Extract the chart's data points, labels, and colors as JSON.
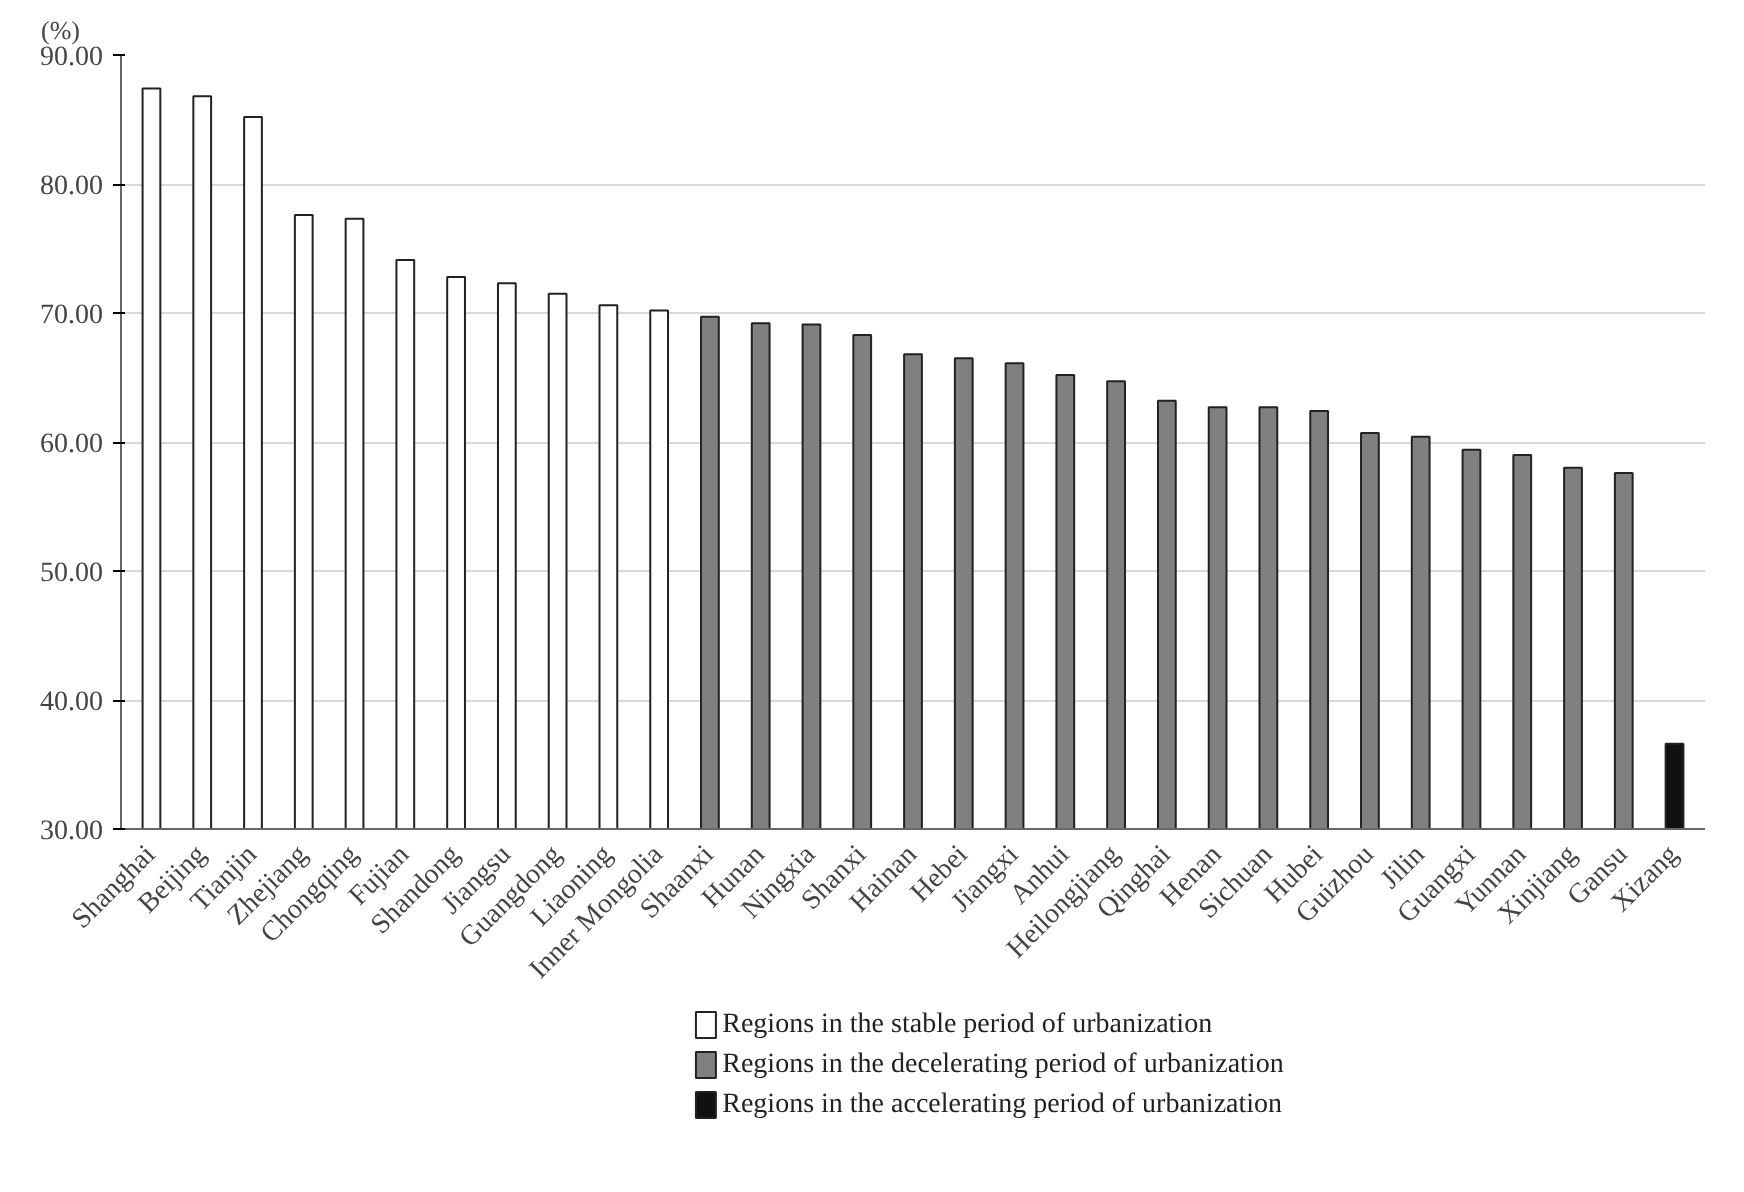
{
  "chart_data": {
    "type": "bar",
    "ylabel": "(%)",
    "categories": [
      "Shanghai",
      "Beijing",
      "Tianjin",
      "Zhejiang",
      "Chongqing",
      "Fujian",
      "Shandong",
      "Jiangsu",
      "Guangdong",
      "Liaoning",
      "Inner Mongolia",
      "Shaanxi",
      "Hunan",
      "Ningxia",
      "Shanxi",
      "Hainan",
      "Hebei",
      "Jiangxi",
      "Anhui",
      "Heilongjiang",
      "Qinghai",
      "Henan",
      "Sichuan",
      "Hubei",
      "Guizhou",
      "Jilin",
      "Guangxi",
      "Yunnan",
      "Xinjiang",
      "Gansu",
      "Xizang"
    ],
    "series": [
      {
        "name": "Regions in the stable period of urbanization",
        "color": "#ffffff",
        "values": [
          87.4,
          86.8,
          85.2,
          77.6,
          77.3,
          74.1,
          72.8,
          72.3,
          71.5,
          70.6,
          70.2,
          null,
          null,
          null,
          null,
          null,
          null,
          null,
          null,
          null,
          null,
          null,
          null,
          null,
          null,
          null,
          null,
          null,
          null,
          null,
          null
        ]
      },
      {
        "name": "Regions in the decelerating period of urbanization",
        "color": "#808080",
        "values": [
          null,
          null,
          null,
          null,
          null,
          null,
          null,
          null,
          null,
          null,
          null,
          69.7,
          69.2,
          69.1,
          68.3,
          66.8,
          66.5,
          66.1,
          65.2,
          64.7,
          63.2,
          62.7,
          62.7,
          62.4,
          60.7,
          60.4,
          59.4,
          59.0,
          58.0,
          57.6,
          null
        ]
      },
      {
        "name": "Regions in the accelerating period of urbanization",
        "color": "#111111",
        "values": [
          null,
          null,
          null,
          null,
          null,
          null,
          null,
          null,
          null,
          null,
          null,
          null,
          null,
          null,
          null,
          null,
          null,
          null,
          null,
          null,
          null,
          null,
          null,
          null,
          null,
          null,
          null,
          null,
          null,
          null,
          36.6
        ]
      }
    ],
    "ylim": [
      30,
      90
    ],
    "yticks": [
      {
        "value": 30,
        "label": "30.00"
      },
      {
        "value": 40,
        "label": "40.00"
      },
      {
        "value": 50,
        "label": "50.00"
      },
      {
        "value": 60,
        "label": "60.00"
      },
      {
        "value": 70,
        "label": "70.00"
      },
      {
        "value": 80,
        "label": "80.00"
      },
      {
        "value": 90,
        "label": "90.00"
      }
    ],
    "grid": "y",
    "legend": "bottom"
  }
}
